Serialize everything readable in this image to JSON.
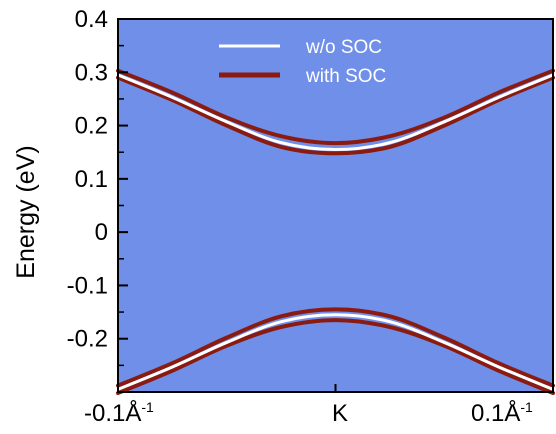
{
  "chart_data": {
    "type": "line",
    "ylabel": "Energy (eV)",
    "xlabel": "",
    "xlim": [
      -0.1,
      0.1
    ],
    "ylim": [
      -0.3,
      0.4
    ],
    "yticks": [
      "0.4",
      "0.3",
      "0.2",
      "0.1",
      "0",
      "-0.1",
      "-0.2"
    ],
    "ytick_values": [
      0.4,
      0.3,
      0.2,
      0.1,
      0.0,
      -0.1,
      -0.2
    ],
    "xtick_labels": {
      "left_base": "-0.1Å",
      "left_sup": "-1",
      "center": "K",
      "right_base": "0.1Å",
      "right_sup": "-1"
    },
    "legend": {
      "placement": "top-center",
      "entries": [
        "w/o SOC",
        "with SOC"
      ]
    },
    "x": [
      -0.1,
      -0.075,
      -0.05,
      -0.025,
      0.0,
      0.025,
      0.05,
      0.075,
      0.1
    ],
    "series": [
      {
        "name": "w/o SOC",
        "color": "#ffffff",
        "values": [
          0.295,
          0.253,
          0.207,
          0.168,
          0.155,
          0.168,
          0.207,
          0.253,
          0.295
        ]
      },
      {
        "name": "w/o SOC",
        "color": "#ffffff",
        "values": [
          -0.295,
          -0.253,
          -0.207,
          -0.168,
          -0.155,
          -0.168,
          -0.207,
          -0.253,
          -0.295
        ]
      },
      {
        "name": "with SOC",
        "color": "#8b1a10",
        "values": [
          0.303,
          0.262,
          0.215,
          0.18,
          0.167,
          0.18,
          0.215,
          0.262,
          0.303
        ]
      },
      {
        "name": "with SOC",
        "color": "#8b1a10",
        "values": [
          0.29,
          0.248,
          0.2,
          0.16,
          0.148,
          0.16,
          0.2,
          0.248,
          0.29
        ]
      },
      {
        "name": "with SOC",
        "color": "#8b1a10",
        "values": [
          -0.288,
          -0.246,
          -0.198,
          -0.158,
          -0.145,
          -0.158,
          -0.198,
          -0.246,
          -0.288
        ]
      },
      {
        "name": "with SOC",
        "color": "#8b1a10",
        "values": [
          -0.302,
          -0.26,
          -0.213,
          -0.178,
          -0.165,
          -0.178,
          -0.213,
          -0.26,
          -0.302
        ]
      }
    ],
    "background_color": "#6f8fe8",
    "grid": false
  }
}
